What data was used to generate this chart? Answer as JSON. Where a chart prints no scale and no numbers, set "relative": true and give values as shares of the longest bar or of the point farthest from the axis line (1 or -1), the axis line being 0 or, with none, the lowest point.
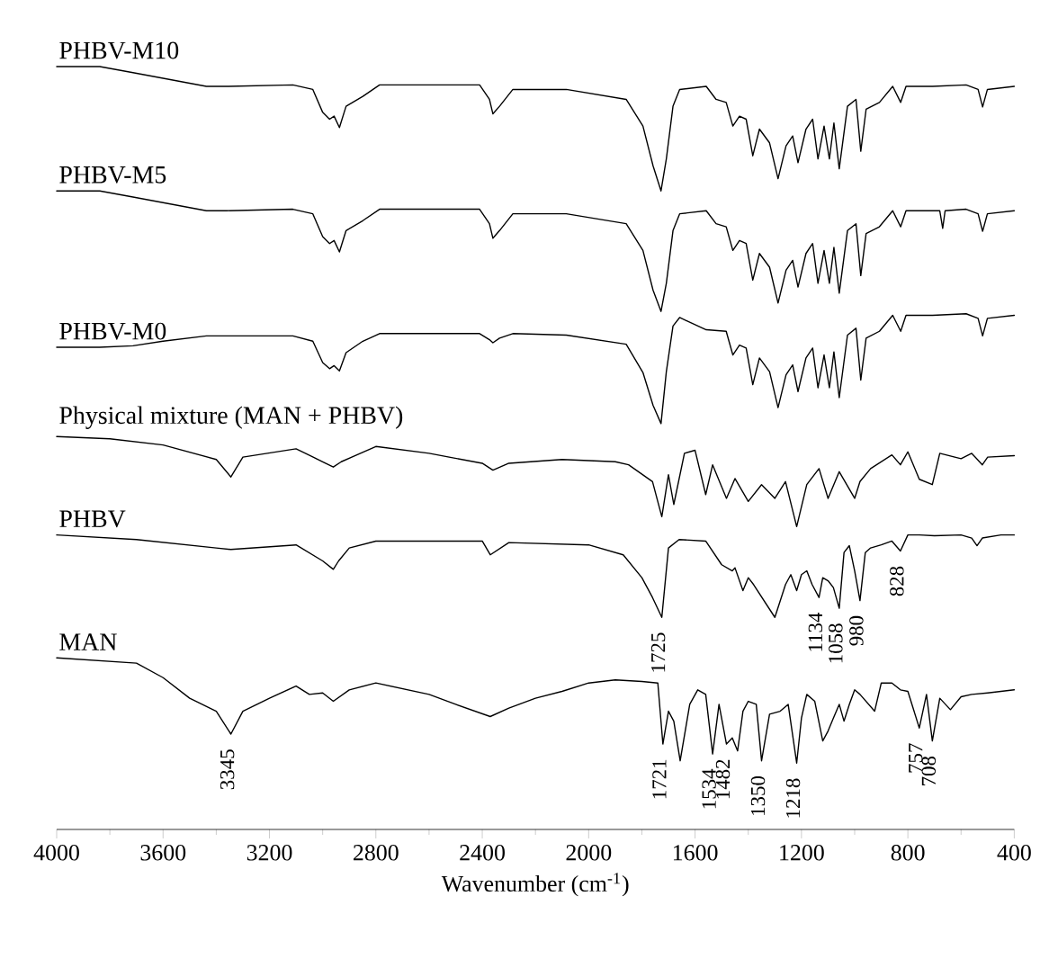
{
  "chart_data": {
    "type": "line",
    "relative": true,
    "xlabel": "Wavenumber (cm$^{-1}$)",
    "xlim": [
      4000,
      400
    ],
    "xticks": [
      4000,
      3600,
      3200,
      2800,
      2400,
      2000,
      1600,
      1200,
      800,
      400
    ],
    "series": [
      {
        "name": "PHBV-M10",
        "color": "#000000",
        "x": [
          4000,
          3838,
          3713,
          3437,
          3362,
          3112,
          3037,
          3000,
          2974,
          2957,
          2937,
          2912,
          2849,
          2786,
          2410,
          2373,
          2360,
          2335,
          2285,
          2084,
          1859,
          1796,
          1758,
          1728,
          1708,
          1683,
          1658,
          1558,
          1521,
          1483,
          1458,
          1433,
          1408,
          1383,
          1358,
          1320,
          1288,
          1258,
          1233,
          1213,
          1183,
          1158,
          1138,
          1115,
          1095,
          1078,
          1058,
          1027,
          995,
          977,
          957,
          907,
          857,
          827,
          807,
          707,
          581,
          536,
          519,
          501,
          400
        ],
        "values": [
          1.0,
          1.0,
          0.992,
          0.974,
          0.974,
          0.976,
          0.97,
          0.94,
          0.931,
          0.935,
          0.92,
          0.948,
          0.961,
          0.976,
          0.976,
          0.957,
          0.938,
          0.948,
          0.97,
          0.97,
          0.957,
          0.922,
          0.87,
          0.837,
          0.879,
          0.948,
          0.97,
          0.974,
          0.957,
          0.953,
          0.922,
          0.935,
          0.931,
          0.883,
          0.918,
          0.9,
          0.853,
          0.896,
          0.909,
          0.874,
          0.918,
          0.931,
          0.879,
          0.922,
          0.879,
          0.926,
          0.866,
          0.948,
          0.957,
          0.889,
          0.944,
          0.953,
          0.974,
          0.953,
          0.974,
          0.974,
          0.976,
          0.97,
          0.947,
          0.97,
          0.974
        ]
      },
      {
        "name": "PHBV-M5",
        "color": "#000000",
        "x": [
          4000,
          3838,
          3713,
          3437,
          3362,
          3112,
          3037,
          3000,
          2974,
          2957,
          2937,
          2912,
          2849,
          2786,
          2410,
          2373,
          2360,
          2335,
          2285,
          2084,
          1859,
          1796,
          1758,
          1728,
          1708,
          1683,
          1658,
          1558,
          1521,
          1483,
          1458,
          1433,
          1408,
          1383,
          1358,
          1320,
          1288,
          1258,
          1233,
          1213,
          1183,
          1158,
          1138,
          1115,
          1095,
          1078,
          1058,
          1027,
          995,
          977,
          957,
          907,
          857,
          827,
          807,
          707,
          680,
          669,
          660,
          581,
          536,
          519,
          501,
          400
        ],
        "values": [
          0.837,
          0.837,
          0.829,
          0.811,
          0.811,
          0.813,
          0.807,
          0.777,
          0.768,
          0.772,
          0.757,
          0.785,
          0.798,
          0.813,
          0.813,
          0.794,
          0.775,
          0.785,
          0.807,
          0.807,
          0.794,
          0.759,
          0.707,
          0.679,
          0.716,
          0.785,
          0.807,
          0.811,
          0.794,
          0.79,
          0.759,
          0.772,
          0.768,
          0.72,
          0.755,
          0.737,
          0.69,
          0.733,
          0.746,
          0.711,
          0.755,
          0.768,
          0.716,
          0.759,
          0.716,
          0.763,
          0.703,
          0.785,
          0.794,
          0.726,
          0.781,
          0.79,
          0.811,
          0.79,
          0.811,
          0.811,
          0.811,
          0.788,
          0.811,
          0.813,
          0.807,
          0.784,
          0.807,
          0.811
        ]
      },
      {
        "name": "PHBV-M0",
        "color": "#000000",
        "x": [
          4000,
          3838,
          3713,
          3600,
          3437,
          3362,
          3112,
          3037,
          3000,
          2974,
          2957,
          2937,
          2912,
          2849,
          2786,
          2410,
          2373,
          2360,
          2335,
          2285,
          2084,
          1859,
          1796,
          1758,
          1728,
          1708,
          1683,
          1658,
          1558,
          1483,
          1458,
          1433,
          1408,
          1383,
          1358,
          1320,
          1288,
          1258,
          1233,
          1213,
          1183,
          1158,
          1138,
          1115,
          1095,
          1078,
          1058,
          1027,
          995,
          977,
          957,
          907,
          857,
          827,
          807,
          707,
          581,
          536,
          519,
          501,
          400
        ],
        "values": [
          0.632,
          0.632,
          0.634,
          0.64,
          0.647,
          0.647,
          0.647,
          0.64,
          0.612,
          0.604,
          0.608,
          0.601,
          0.625,
          0.64,
          0.65,
          0.65,
          0.642,
          0.638,
          0.644,
          0.65,
          0.648,
          0.636,
          0.599,
          0.556,
          0.532,
          0.6,
          0.66,
          0.671,
          0.655,
          0.653,
          0.622,
          0.635,
          0.631,
          0.583,
          0.618,
          0.6,
          0.553,
          0.596,
          0.609,
          0.574,
          0.618,
          0.631,
          0.579,
          0.622,
          0.579,
          0.626,
          0.566,
          0.648,
          0.657,
          0.589,
          0.644,
          0.653,
          0.674,
          0.653,
          0.674,
          0.674,
          0.676,
          0.67,
          0.647,
          0.67,
          0.674
        ]
      },
      {
        "name": "Physical mixture (MAN + PHBV)",
        "color": "#000000",
        "x": [
          4000,
          3800,
          3600,
          3400,
          3345,
          3300,
          3100,
          3000,
          2960,
          2930,
          2800,
          2600,
          2400,
          2360,
          2300,
          2100,
          1900,
          1850,
          1760,
          1725,
          1700,
          1680,
          1640,
          1600,
          1560,
          1534,
          1482,
          1450,
          1400,
          1350,
          1300,
          1260,
          1218,
          1180,
          1134,
          1100,
          1058,
          1000,
          980,
          940,
          900,
          860,
          828,
          800,
          757,
          708,
          680,
          600,
          560,
          520,
          500,
          400
        ],
        "values": [
          0.515,
          0.512,
          0.504,
          0.485,
          0.462,
          0.488,
          0.499,
          0.482,
          0.475,
          0.482,
          0.502,
          0.493,
          0.48,
          0.471,
          0.48,
          0.485,
          0.482,
          0.478,
          0.456,
          0.41,
          0.465,
          0.426,
          0.493,
          0.497,
          0.439,
          0.478,
          0.434,
          0.46,
          0.43,
          0.452,
          0.434,
          0.456,
          0.397,
          0.452,
          0.473,
          0.434,
          0.469,
          0.434,
          0.456,
          0.473,
          0.482,
          0.491,
          0.478,
          0.495,
          0.459,
          0.452,
          0.493,
          0.486,
          0.493,
          0.478,
          0.488,
          0.49
        ]
      },
      {
        "name": "PHBV",
        "color": "#000000",
        "x": [
          4000,
          3700,
          3400,
          3345,
          3100,
          3000,
          2960,
          2940,
          2900,
          2800,
          2400,
          2370,
          2300,
          2000,
          1870,
          1800,
          1760,
          1725,
          1700,
          1660,
          1560,
          1500,
          1460,
          1450,
          1420,
          1400,
          1380,
          1300,
          1260,
          1240,
          1218,
          1200,
          1180,
          1160,
          1134,
          1120,
          1100,
          1080,
          1058,
          1040,
          1020,
          1000,
          980,
          960,
          940,
          900,
          860,
          828,
          800,
          757,
          700,
          600,
          560,
          540,
          520,
          450,
          400
        ],
        "values": [
          0.386,
          0.38,
          0.369,
          0.367,
          0.373,
          0.352,
          0.341,
          0.352,
          0.369,
          0.378,
          0.378,
          0.36,
          0.376,
          0.373,
          0.36,
          0.33,
          0.304,
          0.278,
          0.369,
          0.38,
          0.378,
          0.347,
          0.339,
          0.343,
          0.313,
          0.33,
          0.321,
          0.278,
          0.321,
          0.334,
          0.313,
          0.334,
          0.339,
          0.321,
          0.304,
          0.33,
          0.326,
          0.317,
          0.29,
          0.363,
          0.372,
          0.339,
          0.3,
          0.363,
          0.369,
          0.373,
          0.378,
          0.365,
          0.386,
          0.386,
          0.385,
          0.386,
          0.382,
          0.372,
          0.382,
          0.386,
          0.386
        ]
      },
      {
        "name": "MAN",
        "color": "#000000",
        "x": [
          4000,
          3700,
          3600,
          3500,
          3400,
          3345,
          3300,
          3200,
          3100,
          3050,
          3000,
          2960,
          2900,
          2800,
          2600,
          2500,
          2370,
          2300,
          2200,
          2100,
          2000,
          1900,
          1800,
          1740,
          1721,
          1700,
          1680,
          1656,
          1620,
          1590,
          1560,
          1534,
          1510,
          1482,
          1460,
          1440,
          1420,
          1400,
          1370,
          1350,
          1320,
          1280,
          1250,
          1218,
          1200,
          1180,
          1150,
          1120,
          1100,
          1080,
          1058,
          1040,
          1020,
          1000,
          980,
          925,
          900,
          860,
          828,
          800,
          757,
          730,
          708,
          680,
          640,
          600,
          560,
          500,
          400
        ],
        "values": [
          0.225,
          0.218,
          0.199,
          0.172,
          0.155,
          0.125,
          0.155,
          0.172,
          0.188,
          0.177,
          0.179,
          0.168,
          0.183,
          0.192,
          0.177,
          0.164,
          0.148,
          0.159,
          0.172,
          0.181,
          0.192,
          0.196,
          0.194,
          0.192,
          0.112,
          0.155,
          0.142,
          0.09,
          0.164,
          0.183,
          0.177,
          0.099,
          0.164,
          0.112,
          0.12,
          0.103,
          0.155,
          0.168,
          0.164,
          0.09,
          0.151,
          0.155,
          0.164,
          0.087,
          0.146,
          0.177,
          0.168,
          0.116,
          0.129,
          0.146,
          0.164,
          0.142,
          0.164,
          0.183,
          0.177,
          0.155,
          0.192,
          0.192,
          0.183,
          0.181,
          0.133,
          0.177,
          0.116,
          0.172,
          0.157,
          0.174,
          0.177,
          0.179,
          0.183
        ]
      }
    ],
    "annotations": [
      {
        "text": "3345",
        "x": 3345,
        "y": 0.125
      },
      {
        "text": "1721",
        "x": 1721,
        "y": 0.112
      },
      {
        "text": "1534",
        "x": 1534,
        "y": 0.099
      },
      {
        "text": "1482",
        "x": 1482,
        "y": 0.112
      },
      {
        "text": "1350",
        "x": 1350,
        "y": 0.09
      },
      {
        "text": "1218",
        "x": 1218,
        "y": 0.087
      },
      {
        "text": "757",
        "x": 757,
        "y": 0.133
      },
      {
        "text": "708",
        "x": 708,
        "y": 0.116
      },
      {
        "text": "1725",
        "x": 1725,
        "y": 0.278
      },
      {
        "text": "1134",
        "x": 1134,
        "y": 0.304
      },
      {
        "text": "1058",
        "x": 1058,
        "y": 0.29
      },
      {
        "text": "980",
        "x": 980,
        "y": 0.3
      },
      {
        "text": "828",
        "x": 828,
        "y": 0.365
      }
    ]
  }
}
